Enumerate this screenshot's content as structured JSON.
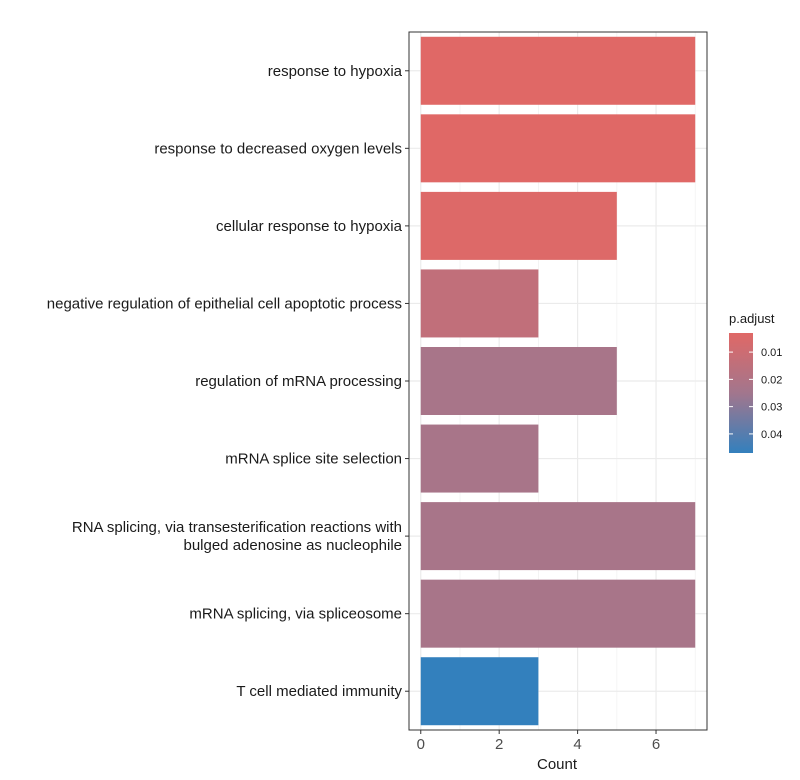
{
  "chart_data": {
    "type": "bar",
    "orientation": "horizontal",
    "xlabel": "Count",
    "ylabel": "",
    "xlim": [
      -0.3,
      7.3
    ],
    "x_ticks": [
      0,
      2,
      4,
      6
    ],
    "grid": true,
    "categories": [
      [
        "response to hypoxia"
      ],
      [
        "response to decreased oxygen levels"
      ],
      [
        "cellular response to hypoxia"
      ],
      [
        "negative regulation of epithelial cell apoptotic process"
      ],
      [
        "regulation of mRNA processing"
      ],
      [
        "mRNA splice site selection"
      ],
      [
        "RNA splicing, via transesterification reactions with",
        "bulged adenosine as nucleophile"
      ],
      [
        "mRNA splicing, via spliceosome"
      ],
      [
        "T cell mediated immunity"
      ]
    ],
    "values": [
      7,
      7,
      5,
      3,
      5,
      3,
      7,
      7,
      3
    ],
    "p_adjust": [
      0.003,
      0.003,
      0.004,
      0.014,
      0.023,
      0.023,
      0.023,
      0.023,
      0.047
    ],
    "legend": {
      "title": "p.adjust",
      "position": "right",
      "ticks": [
        0.01,
        0.02,
        0.03,
        0.04
      ],
      "tick_labels": [
        "0.01",
        "0.02",
        "0.03",
        "0.04"
      ],
      "range": [
        0.003,
        0.047
      ],
      "color_low": "#E06866",
      "color_mid": "#A2768D",
      "color_high": "#3380BD"
    }
  }
}
